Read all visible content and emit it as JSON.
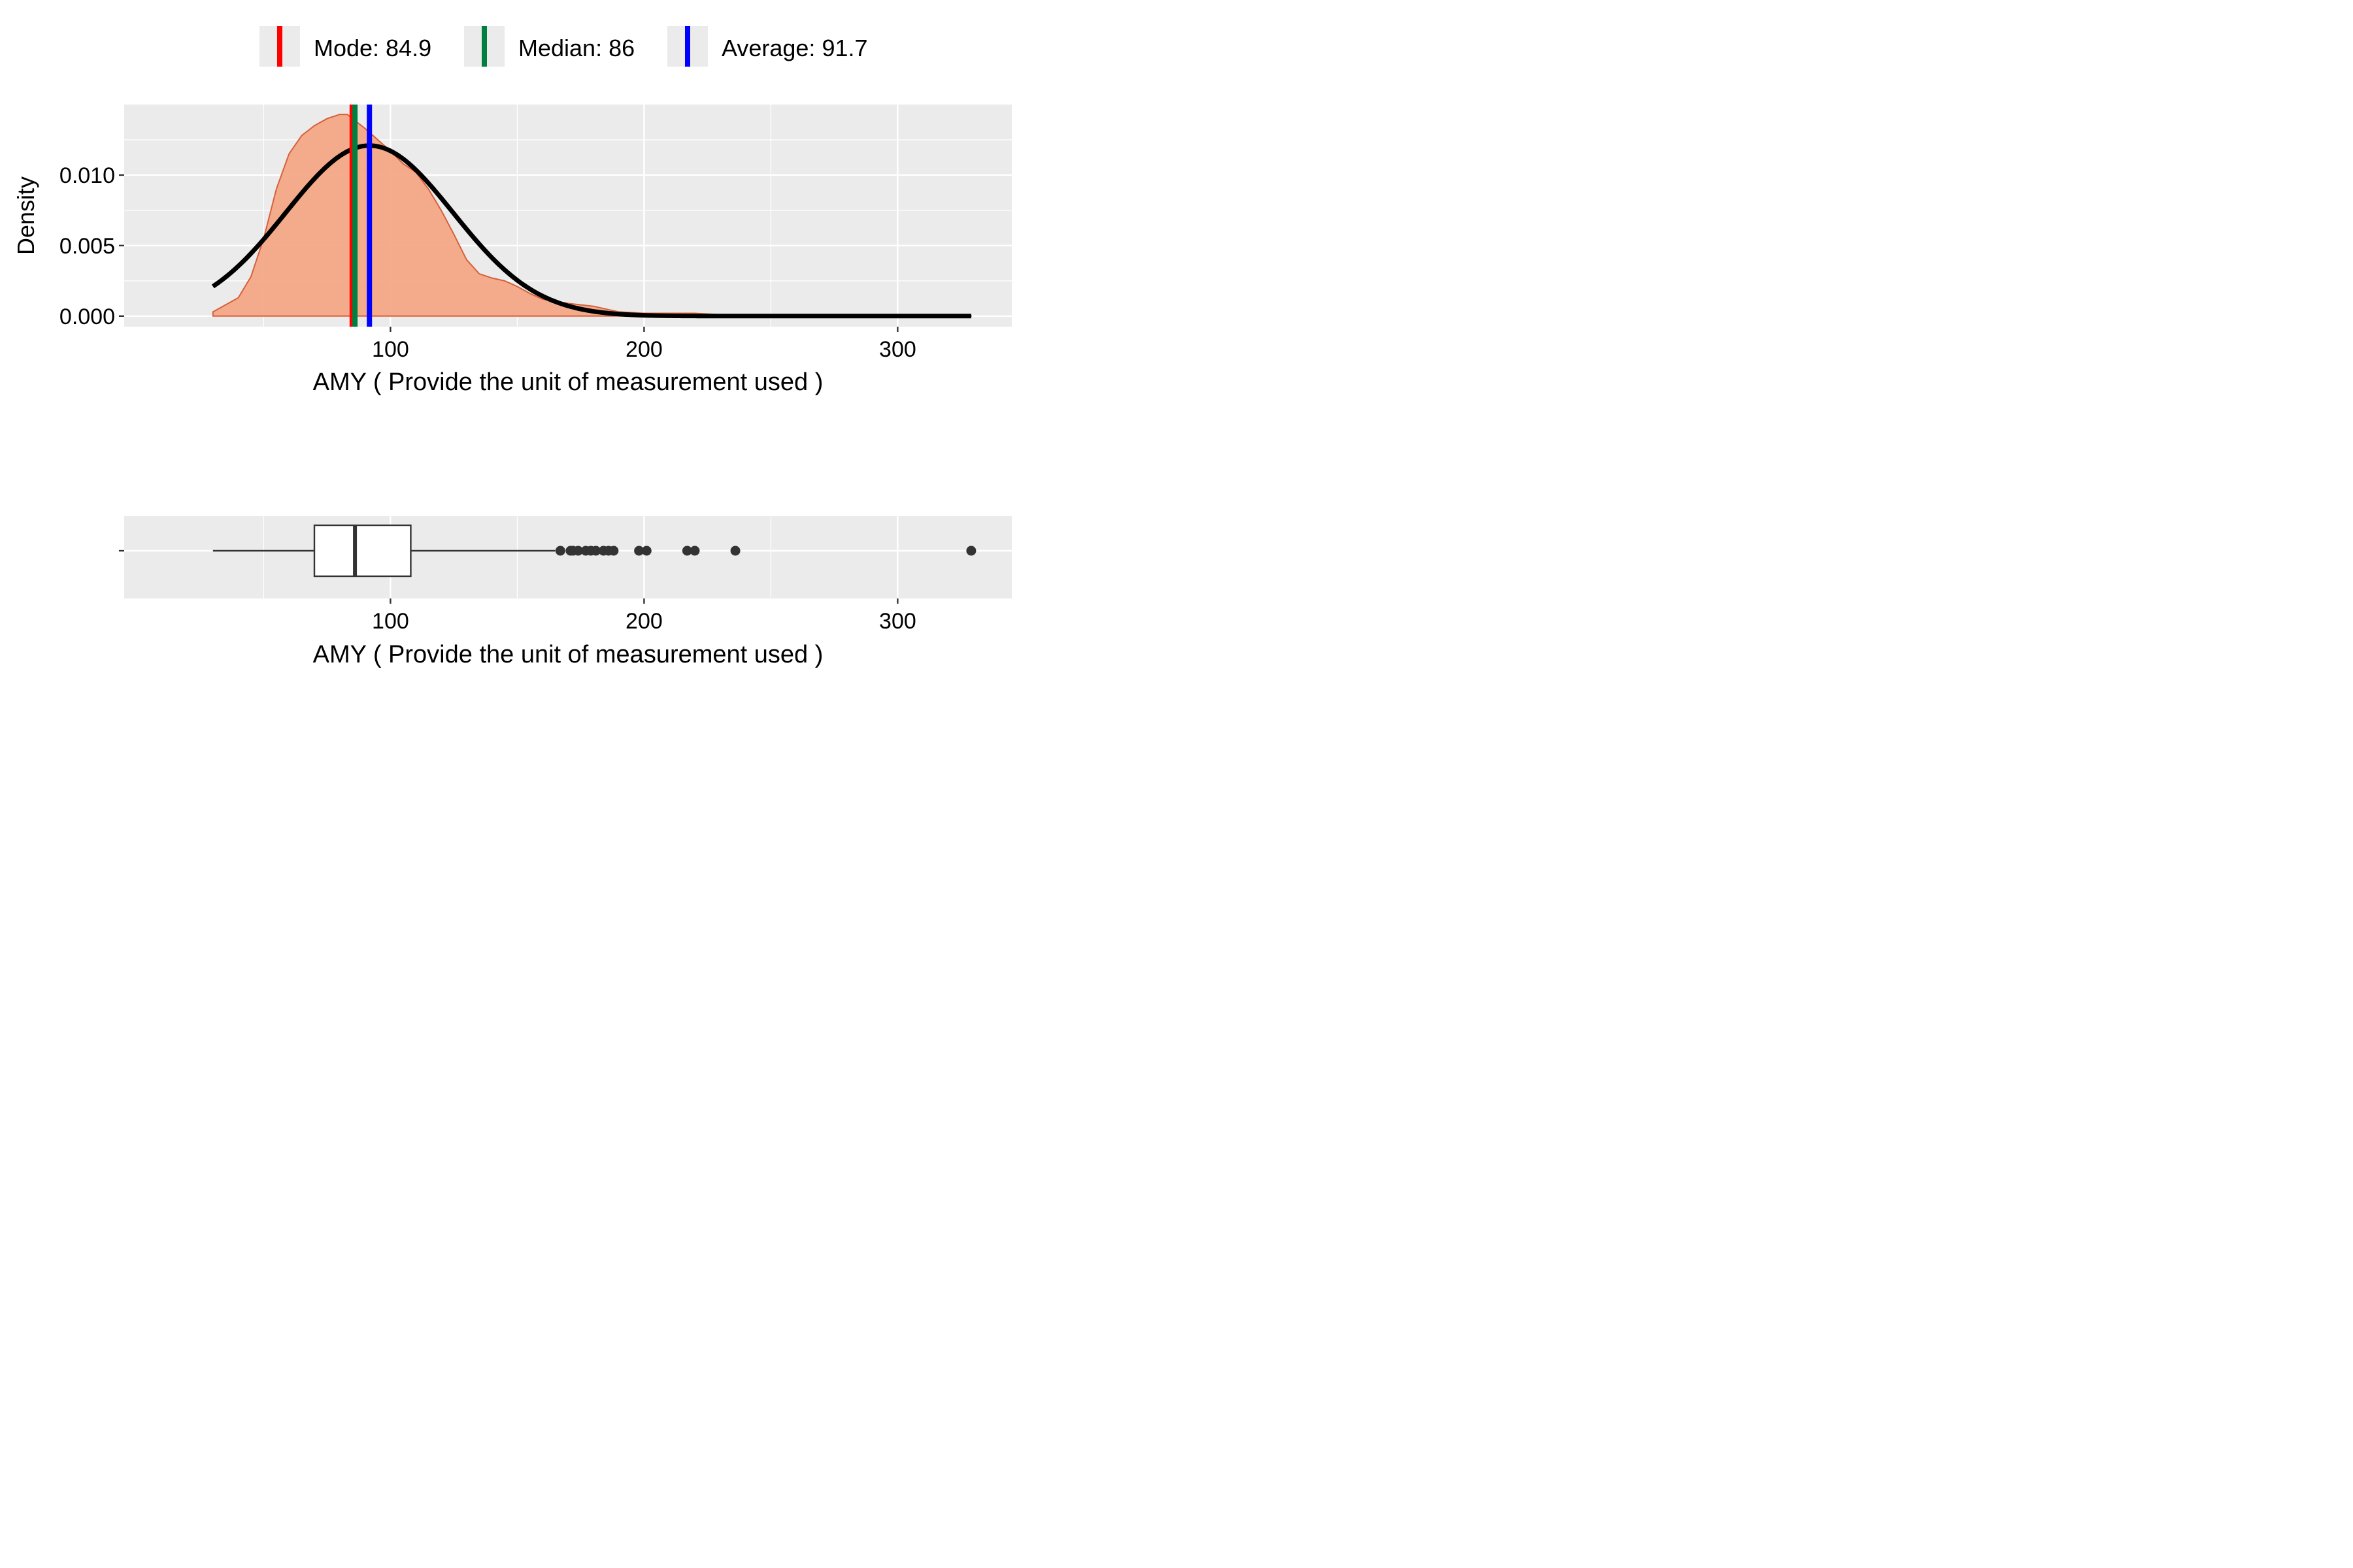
{
  "legend": {
    "items": [
      {
        "label": "Mode:  84.9",
        "color": "#ff0000"
      },
      {
        "label": "Median:  86",
        "color": "#008040"
      },
      {
        "label": "Average:  91.7",
        "color": "#0000ff"
      }
    ]
  },
  "chart_data": [
    {
      "type": "area",
      "panel": "density",
      "xlabel": "AMY ( Provide the unit of measurement used )",
      "ylabel": "Density",
      "xlim": [
        -5,
        345
      ],
      "ylim": [
        -0.00075,
        0.015
      ],
      "xticks": [
        100,
        200,
        300
      ],
      "xtick_labels": [
        "100",
        "200",
        "300"
      ],
      "yticks": [
        0.0,
        0.005,
        0.01
      ],
      "ytick_labels": [
        "0.000",
        "0.005",
        "0.010"
      ],
      "grid": true,
      "legend_position": "top",
      "kernel_density": {
        "x": [
          30,
          40,
          45,
          50,
          55,
          60,
          65,
          70,
          75,
          80,
          83,
          85,
          90,
          95,
          100,
          105,
          110,
          115,
          120,
          125,
          130,
          135,
          140,
          145,
          150,
          155,
          160,
          170,
          180,
          190,
          200,
          210,
          220,
          230,
          240,
          260,
          280,
          300,
          329
        ],
        "y": [
          0.0003,
          0.0013,
          0.0028,
          0.0055,
          0.009,
          0.0115,
          0.0128,
          0.0135,
          0.014,
          0.0143,
          0.0143,
          0.014,
          0.0133,
          0.0125,
          0.0117,
          0.0108,
          0.0102,
          0.009,
          0.0075,
          0.0058,
          0.004,
          0.003,
          0.0027,
          0.0025,
          0.0021,
          0.0016,
          0.0012,
          0.0009,
          0.0007,
          0.0003,
          0.0002,
          0.0002,
          0.0002,
          0.0001,
          0.0,
          0.0,
          0.0,
          0.0,
          0.0
        ],
        "fill": "#f4a582",
        "stroke": "#d6603a"
      },
      "normal_curve": {
        "mean": 91.7,
        "sd": 33.0,
        "x_range": [
          30,
          329
        ],
        "color": "#000000"
      },
      "vlines": [
        {
          "name": "Mode",
          "value": 84.9,
          "color": "#ff0000"
        },
        {
          "name": "Median",
          "value": 86,
          "color": "#008040"
        },
        {
          "name": "Average",
          "value": 91.7,
          "color": "#0000ff"
        }
      ]
    },
    {
      "type": "boxplot",
      "panel": "box",
      "xlabel": "AMY ( Provide the unit of measurement used )",
      "xlim": [
        -5,
        345
      ],
      "xticks": [
        100,
        200,
        300
      ],
      "xtick_labels": [
        "100",
        "200",
        "300"
      ],
      "grid": true,
      "box": {
        "whisker_low": 30,
        "q1": 70,
        "median": 86,
        "q3": 108,
        "whisker_high": 165
      },
      "outliers": [
        167,
        171,
        172,
        174,
        177,
        179,
        181,
        184,
        186,
        188,
        198,
        201,
        217,
        220,
        236,
        329
      ]
    }
  ]
}
